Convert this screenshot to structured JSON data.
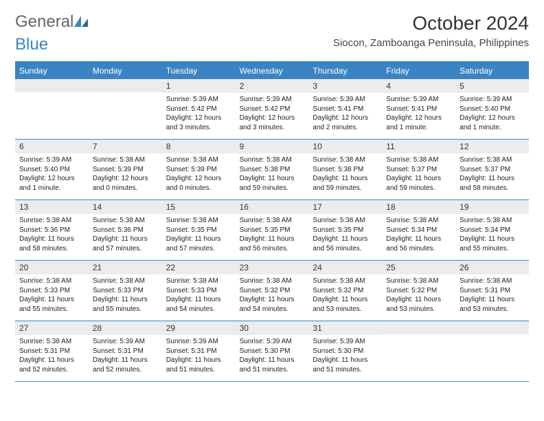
{
  "logo": {
    "text1": "General",
    "text2": "Blue"
  },
  "title": "October 2024",
  "location": "Siocon, Zamboanga Peninsula, Philippines",
  "colors": {
    "header_bg": "#3b84c4",
    "daynum_bg": "#ececec",
    "page_bg": "#ffffff",
    "text": "#222222"
  },
  "layout": {
    "columns": 7,
    "rows": 5,
    "cell_fontsize_pt": 10,
    "weekday_fontsize_pt": 12,
    "title_fontsize_pt": 28
  },
  "weekdays": [
    "Sunday",
    "Monday",
    "Tuesday",
    "Wednesday",
    "Thursday",
    "Friday",
    "Saturday"
  ],
  "weeks": [
    [
      {
        "n": "",
        "sunrise": "",
        "sunset": "",
        "daylight": ""
      },
      {
        "n": "",
        "sunrise": "",
        "sunset": "",
        "daylight": ""
      },
      {
        "n": "1",
        "sunrise": "5:39 AM",
        "sunset": "5:42 PM",
        "daylight": "12 hours and 3 minutes."
      },
      {
        "n": "2",
        "sunrise": "5:39 AM",
        "sunset": "5:42 PM",
        "daylight": "12 hours and 3 minutes."
      },
      {
        "n": "3",
        "sunrise": "5:39 AM",
        "sunset": "5:41 PM",
        "daylight": "12 hours and 2 minutes."
      },
      {
        "n": "4",
        "sunrise": "5:39 AM",
        "sunset": "5:41 PM",
        "daylight": "12 hours and 1 minute."
      },
      {
        "n": "5",
        "sunrise": "5:39 AM",
        "sunset": "5:40 PM",
        "daylight": "12 hours and 1 minute."
      }
    ],
    [
      {
        "n": "6",
        "sunrise": "5:39 AM",
        "sunset": "5:40 PM",
        "daylight": "12 hours and 1 minute."
      },
      {
        "n": "7",
        "sunrise": "5:38 AM",
        "sunset": "5:39 PM",
        "daylight": "12 hours and 0 minutes."
      },
      {
        "n": "8",
        "sunrise": "5:38 AM",
        "sunset": "5:39 PM",
        "daylight": "12 hours and 0 minutes."
      },
      {
        "n": "9",
        "sunrise": "5:38 AM",
        "sunset": "5:38 PM",
        "daylight": "11 hours and 59 minutes."
      },
      {
        "n": "10",
        "sunrise": "5:38 AM",
        "sunset": "5:38 PM",
        "daylight": "11 hours and 59 minutes."
      },
      {
        "n": "11",
        "sunrise": "5:38 AM",
        "sunset": "5:37 PM",
        "daylight": "11 hours and 59 minutes."
      },
      {
        "n": "12",
        "sunrise": "5:38 AM",
        "sunset": "5:37 PM",
        "daylight": "11 hours and 58 minutes."
      }
    ],
    [
      {
        "n": "13",
        "sunrise": "5:38 AM",
        "sunset": "5:36 PM",
        "daylight": "11 hours and 58 minutes."
      },
      {
        "n": "14",
        "sunrise": "5:38 AM",
        "sunset": "5:36 PM",
        "daylight": "11 hours and 57 minutes."
      },
      {
        "n": "15",
        "sunrise": "5:38 AM",
        "sunset": "5:35 PM",
        "daylight": "11 hours and 57 minutes."
      },
      {
        "n": "16",
        "sunrise": "5:38 AM",
        "sunset": "5:35 PM",
        "daylight": "11 hours and 56 minutes."
      },
      {
        "n": "17",
        "sunrise": "5:38 AM",
        "sunset": "5:35 PM",
        "daylight": "11 hours and 56 minutes."
      },
      {
        "n": "18",
        "sunrise": "5:38 AM",
        "sunset": "5:34 PM",
        "daylight": "11 hours and 56 minutes."
      },
      {
        "n": "19",
        "sunrise": "5:38 AM",
        "sunset": "5:34 PM",
        "daylight": "11 hours and 55 minutes."
      }
    ],
    [
      {
        "n": "20",
        "sunrise": "5:38 AM",
        "sunset": "5:33 PM",
        "daylight": "11 hours and 55 minutes."
      },
      {
        "n": "21",
        "sunrise": "5:38 AM",
        "sunset": "5:33 PM",
        "daylight": "11 hours and 55 minutes."
      },
      {
        "n": "22",
        "sunrise": "5:38 AM",
        "sunset": "5:33 PM",
        "daylight": "11 hours and 54 minutes."
      },
      {
        "n": "23",
        "sunrise": "5:38 AM",
        "sunset": "5:32 PM",
        "daylight": "11 hours and 54 minutes."
      },
      {
        "n": "24",
        "sunrise": "5:38 AM",
        "sunset": "5:32 PM",
        "daylight": "11 hours and 53 minutes."
      },
      {
        "n": "25",
        "sunrise": "5:38 AM",
        "sunset": "5:32 PM",
        "daylight": "11 hours and 53 minutes."
      },
      {
        "n": "26",
        "sunrise": "5:38 AM",
        "sunset": "5:31 PM",
        "daylight": "11 hours and 53 minutes."
      }
    ],
    [
      {
        "n": "27",
        "sunrise": "5:38 AM",
        "sunset": "5:31 PM",
        "daylight": "11 hours and 52 minutes."
      },
      {
        "n": "28",
        "sunrise": "5:39 AM",
        "sunset": "5:31 PM",
        "daylight": "11 hours and 52 minutes."
      },
      {
        "n": "29",
        "sunrise": "5:39 AM",
        "sunset": "5:31 PM",
        "daylight": "11 hours and 51 minutes."
      },
      {
        "n": "30",
        "sunrise": "5:39 AM",
        "sunset": "5:30 PM",
        "daylight": "11 hours and 51 minutes."
      },
      {
        "n": "31",
        "sunrise": "5:39 AM",
        "sunset": "5:30 PM",
        "daylight": "11 hours and 51 minutes."
      },
      {
        "n": "",
        "sunrise": "",
        "sunset": "",
        "daylight": ""
      },
      {
        "n": "",
        "sunrise": "",
        "sunset": "",
        "daylight": ""
      }
    ]
  ],
  "labels": {
    "sunrise": "Sunrise:",
    "sunset": "Sunset:",
    "daylight": "Daylight:"
  }
}
